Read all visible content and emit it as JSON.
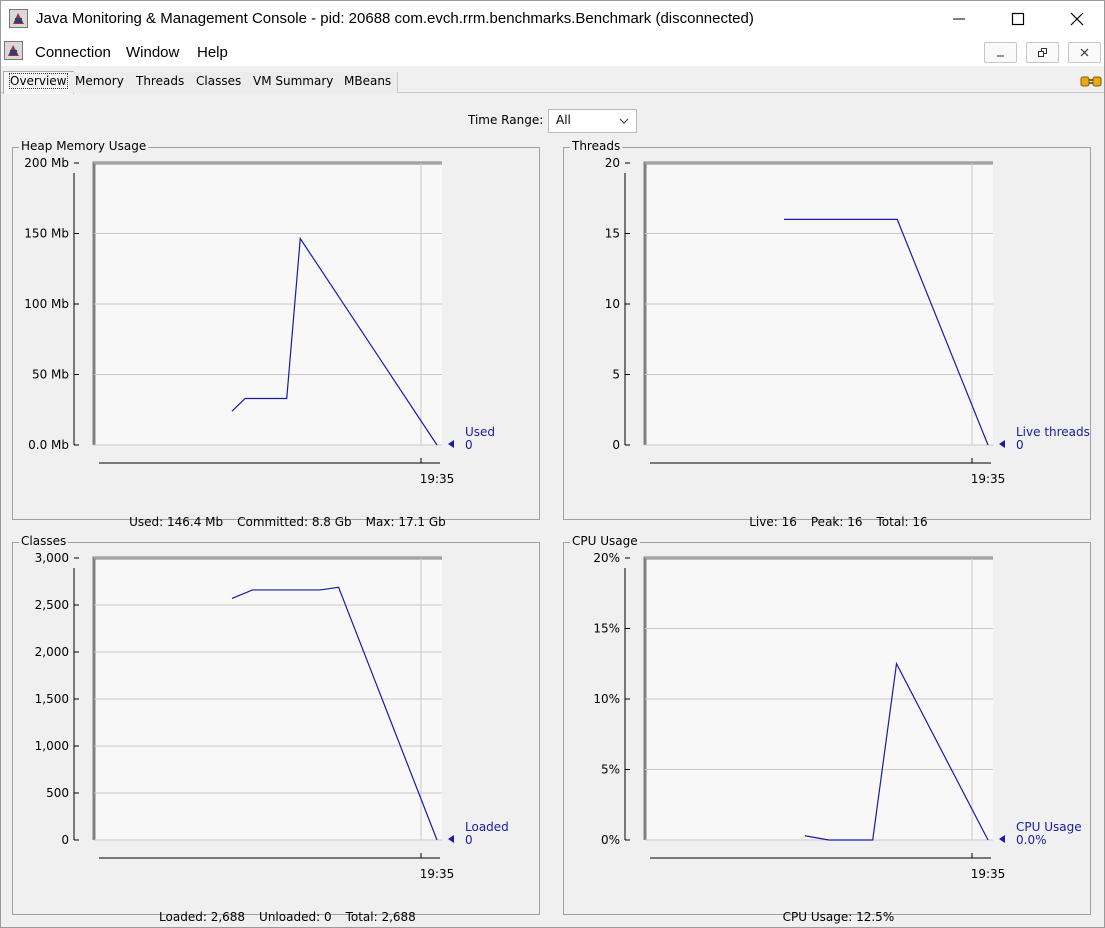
{
  "window": {
    "title": "Java Monitoring & Management Console - pid: 20688 com.evch.rrm.benchmarks.Benchmark (disconnected)"
  },
  "menu": [
    "Connection",
    "Window",
    "Help"
  ],
  "tabs": [
    "Overview",
    "Memory",
    "Threads",
    "Classes",
    "VM Summary",
    "MBeans"
  ],
  "time_range": {
    "label": "Time Range:",
    "value": "All"
  },
  "colors": {
    "series": "#1a1aa6",
    "grid": "#c8c8c8"
  },
  "chart_data": [
    {
      "type": "line",
      "title": "Heap Memory Usage",
      "ylim": [
        0,
        200
      ],
      "yticks": [
        0,
        50,
        100,
        150,
        200
      ],
      "ytick_labels": [
        "0.0 Mb",
        "50 Mb",
        "100 Mb",
        "150 Mb",
        "200 Mb"
      ],
      "xtick_labels": [
        "19:35"
      ],
      "series": [
        {
          "name": "Used",
          "current": "0",
          "x": [
            0,
            0.064,
            0.267,
            0.333,
            1
          ],
          "values": [
            24,
            33,
            33,
            146.4,
            0
          ]
        }
      ],
      "footer": [
        "Used: 146.4 Mb",
        "Committed: 8.8 Gb",
        "Max: 17.1 Gb"
      ]
    },
    {
      "type": "line",
      "title": "Threads",
      "ylim": [
        0,
        20
      ],
      "yticks": [
        0,
        5,
        10,
        15,
        20
      ],
      "ytick_labels": [
        "0",
        "5",
        "10",
        "15",
        "20"
      ],
      "xtick_labels": [
        "19:35"
      ],
      "series": [
        {
          "name": "Live threads",
          "current": "0",
          "x": [
            0,
            0.555,
            1
          ],
          "values": [
            16,
            16,
            0
          ]
        }
      ],
      "footer": [
        "Live: 16",
        "Peak: 16",
        "Total: 16"
      ]
    },
    {
      "type": "line",
      "title": "Classes",
      "ylim": [
        0,
        3000
      ],
      "yticks": [
        0,
        500,
        1000,
        1500,
        2000,
        2500,
        3000
      ],
      "ytick_labels": [
        "0",
        "500",
        "1,000",
        "1,500",
        "2,000",
        "2,500",
        "3,000"
      ],
      "xtick_labels": [
        "19:35"
      ],
      "series": [
        {
          "name": "Loaded",
          "current": "0",
          "x": [
            0,
            0.1,
            0.43,
            0.52,
            1
          ],
          "values": [
            2570,
            2660,
            2660,
            2688,
            0
          ]
        }
      ],
      "footer": [
        "Loaded: 2,688",
        "Unloaded: 0",
        "Total: 2,688"
      ]
    },
    {
      "type": "line",
      "title": "CPU Usage",
      "ylim": [
        0,
        20
      ],
      "yticks": [
        0,
        5,
        10,
        15,
        20
      ],
      "ytick_labels": [
        "0%",
        "5%",
        "10%",
        "15%",
        "20%"
      ],
      "xtick_labels": [
        "19:35"
      ],
      "series": [
        {
          "name": "CPU Usage",
          "current": "0.0%",
          "x": [
            0,
            0.13,
            0.37,
            0.5,
            1
          ],
          "values": [
            0.3,
            0,
            0,
            12.5,
            0
          ]
        }
      ],
      "footer": [
        "CPU Usage: 12.5%"
      ]
    }
  ]
}
